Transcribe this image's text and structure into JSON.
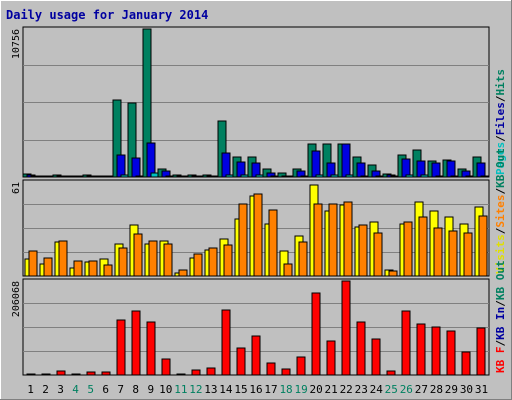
{
  "chart_data": {
    "type": "bar",
    "title": "Daily usage for January 2014",
    "categories": [
      "1",
      "2",
      "3",
      "4",
      "5",
      "6",
      "7",
      "8",
      "9",
      "10",
      "11",
      "12",
      "13",
      "14",
      "15",
      "16",
      "17",
      "18",
      "19",
      "20",
      "21",
      "22",
      "23",
      "24",
      "25",
      "26",
      "27",
      "28",
      "29",
      "30",
      "31"
    ],
    "weekend_days": [
      "4",
      "5",
      "11",
      "12",
      "18",
      "19",
      "25",
      "26"
    ],
    "grid": true,
    "panels": [
      {
        "id": "hits",
        "ymax": 10756,
        "ymax_label": "10756",
        "legend": [
          {
            "text": "Pages",
            "color": "#00c0c0"
          },
          {
            "text": "/",
            "color": "#000000"
          },
          {
            "text": "Files",
            "color": "#0000a0"
          },
          {
            "text": "/",
            "color": "#000000"
          },
          {
            "text": "Hits",
            "color": "#008060"
          }
        ],
        "series": [
          {
            "name": "Hits",
            "color": "#008060",
            "values": [
              210,
              70,
              140,
              70,
              140,
              70,
              5600,
              5400,
              10756,
              570,
              140,
              140,
              140,
              4100,
              1430,
              1430,
              570,
              280,
              570,
              2400,
              2400,
              2400,
              1430,
              860,
              210,
              1600,
              1980,
              1150,
              1220,
              570,
              1430
            ]
          },
          {
            "name": "Files",
            "color": "#0000e0",
            "values": [
              140,
              40,
              100,
              40,
              100,
              40,
              1600,
              1400,
              2460,
              430,
              100,
              100,
              100,
              1770,
              1070,
              1000,
              290,
              100,
              430,
              1860,
              1000,
              2380,
              1000,
              430,
              140,
              1300,
              1140,
              1000,
              1140,
              430,
              1000
            ]
          },
          {
            "name": "Pages",
            "color": "#00c0c0",
            "values": [
              30,
              10,
              20,
              10,
              20,
              10,
              140,
              100,
              280,
              70,
              20,
              20,
              20,
              140,
              110,
              110,
              30,
              20,
              50,
              140,
              140,
              140,
              100,
              70,
              30,
              140,
              110,
              100,
              100,
              70,
              100
            ]
          }
        ]
      },
      {
        "id": "visits",
        "ymax": 61,
        "ymax_label": "61",
        "legend": [
          {
            "text": "Visits",
            "color": "#e0e000"
          },
          {
            "text": "/",
            "color": "#000000"
          },
          {
            "text": "Sites",
            "color": "#ff8000"
          },
          {
            "text": "/",
            "color": "#000000"
          },
          {
            "text": "KB Out",
            "color": "#008060"
          }
        ],
        "series": [
          {
            "name": "Visits",
            "color": "#ffff00",
            "values": [
              11,
              8,
              22,
              5,
              9,
              11,
              21,
              33,
              21,
              23,
              2,
              12,
              17,
              24,
              37,
              52,
              34,
              16,
              26,
              59,
              42,
              46,
              32,
              35,
              4,
              34,
              48,
              42,
              38,
              34,
              45
            ]
          },
          {
            "name": "Sites",
            "color": "#ff8000",
            "values": [
              16,
              12,
              23,
              10,
              10,
              7,
              18,
              27,
              23,
              21,
              4,
              14,
              18,
              20,
              47,
              53,
              43,
              8,
              22,
              47,
              47,
              48,
              33,
              28,
              3,
              35,
              38,
              31,
              29,
              28,
              39
            ]
          }
        ]
      },
      {
        "id": "kbytes",
        "ymax": 206068,
        "ymax_label": "206068",
        "legend": [
          {
            "text": "KB F",
            "color": "#ff0000"
          },
          {
            "text": "/",
            "color": "#000000"
          },
          {
            "text": "KB In",
            "color": "#0000a0"
          },
          {
            "text": "/",
            "color": "#000000"
          },
          {
            "text": "KB Out",
            "color": "#008060"
          }
        ],
        "series": [
          {
            "name": "KB F",
            "color": "#ff0000",
            "values": [
              2000,
              2000,
              9000,
              2000,
              6000,
              6000,
              120000,
              140000,
              116000,
              36000,
              2000,
              11000,
              16000,
              143000,
              60000,
              86000,
              26000,
              14000,
              39000,
              179000,
              74000,
              206068,
              116000,
              80000,
              9000,
              140000,
              112000,
              106000,
              96000,
              50000,
              102000
            ]
          }
        ]
      }
    ]
  }
}
